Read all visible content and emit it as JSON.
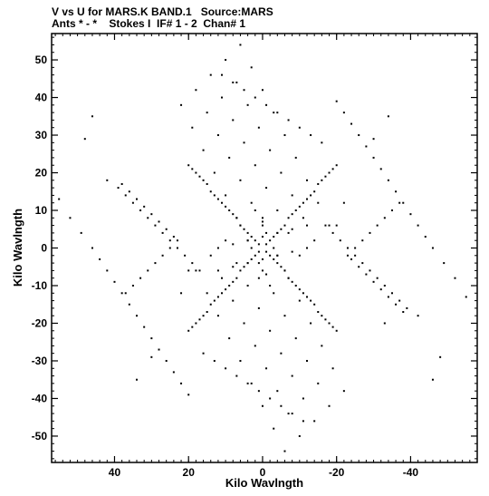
{
  "header": {
    "line1": "V vs U for MARS.K BAND.1   Source:MARS",
    "line2": "Ants * - *    Stokes I  IF# 1 - 2  Chan# 1"
  },
  "chart_data": {
    "type": "scatter",
    "xlabel": "Kilo Wavlngth",
    "ylabel": "Kilo Wavlngth",
    "xlim": [
      57,
      -58
    ],
    "ylim": [
      -57,
      57
    ],
    "xticks": [
      40,
      20,
      0,
      -20,
      -40
    ],
    "yticks": [
      50,
      40,
      30,
      20,
      10,
      0,
      -10,
      -20,
      -30,
      -40,
      -50
    ],
    "x_reversed": true,
    "point_color": "#000000",
    "x": [
      55,
      52,
      49,
      46,
      44,
      42,
      40,
      38,
      36,
      34,
      32,
      30,
      28,
      26,
      24,
      22,
      20,
      -55,
      -52,
      -49,
      -46,
      -44,
      -42,
      -40,
      -38,
      -36,
      -34,
      -32,
      -30,
      -28,
      -26,
      -24,
      -22,
      -20,
      -42,
      -39,
      -37,
      -35,
      -33,
      -31,
      -29,
      -27,
      -25,
      -23,
      -21,
      -19,
      -17,
      42,
      39,
      37,
      35,
      33,
      31,
      29,
      27,
      25,
      23,
      21,
      19,
      17,
      38,
      36,
      34,
      32,
      30,
      28,
      26,
      24,
      -38,
      -36,
      -34,
      -32,
      -30,
      -28,
      -26,
      -24,
      -37,
      -35,
      -33,
      -31,
      -29,
      -27,
      -25,
      -23,
      37,
      35,
      33,
      31,
      29,
      27,
      25,
      23,
      -34,
      -30,
      -22,
      -20,
      -46,
      -48,
      -33,
      34,
      30,
      22,
      20,
      46,
      48,
      20,
      19,
      18,
      17,
      16,
      15,
      14,
      13,
      12,
      11,
      10,
      9,
      8,
      7,
      6,
      5,
      4,
      3,
      2,
      1,
      -1,
      -2,
      -3,
      -4,
      -5,
      -6,
      -7,
      -8,
      -9,
      -10,
      -11,
      -12,
      -13,
      -14,
      -15,
      -16,
      -17,
      -18,
      -19,
      -20,
      20,
      19,
      18,
      17,
      16,
      15,
      14,
      13,
      12,
      11,
      10,
      9,
      8,
      7,
      6,
      5,
      4,
      3,
      2,
      1,
      -1,
      -2,
      -3,
      -4,
      -5,
      -6,
      -7,
      -8,
      -9,
      -10,
      -11,
      -12,
      -13,
      -14,
      -15,
      -16,
      -17,
      -18,
      -19,
      -20,
      6,
      3,
      0,
      -3,
      -6,
      -9,
      -12,
      -15,
      -18,
      10,
      7,
      4,
      1,
      -2,
      -5,
      -8,
      -11,
      -14,
      14,
      11,
      8,
      5,
      2,
      -1,
      -4,
      -7,
      -10,
      18,
      15,
      12,
      9,
      6,
      3,
      0,
      -3,
      -6,
      22,
      19,
      16,
      13,
      10,
      7,
      4,
      1,
      -2,
      -6,
      -3,
      0,
      3,
      6,
      9,
      12,
      15,
      18,
      -10,
      -7,
      -4,
      -1,
      2,
      5,
      8,
      11,
      14,
      -14,
      -11,
      -8,
      -5,
      -2,
      1,
      4,
      7,
      10,
      -18,
      -15,
      -12,
      -9,
      -6,
      -3,
      0,
      3,
      6,
      -22,
      -19,
      -16,
      -13,
      -10,
      -7,
      -4,
      -1,
      2,
      16,
      13,
      10,
      7,
      4,
      1,
      -2,
      -5,
      -8,
      -11,
      -16,
      -13,
      -10,
      -7,
      -4,
      -1,
      2,
      5,
      8,
      11,
      12,
      8,
      4,
      0,
      -4,
      -8,
      -12,
      -12,
      -8,
      -4,
      0,
      4,
      8,
      12,
      0,
      1,
      -1,
      0
    ],
    "y": [
      13,
      8,
      4,
      0,
      -3,
      -6,
      -9,
      -12,
      -15,
      -18,
      -21,
      -24,
      -27,
      -30,
      -33,
      -36,
      -39,
      -13,
      -8,
      -4,
      0,
      3,
      6,
      9,
      12,
      15,
      18,
      21,
      24,
      27,
      30,
      33,
      36,
      39,
      -18,
      -16,
      -14,
      -12,
      -10,
      -8,
      -6,
      -4,
      -2,
      0,
      2,
      4,
      6,
      18,
      16,
      14,
      12,
      10,
      8,
      6,
      4,
      2,
      0,
      -2,
      -4,
      -6,
      17,
      15,
      13,
      11,
      9,
      7,
      5,
      3,
      -17,
      -15,
      -13,
      -11,
      -9,
      -7,
      -5,
      -3,
      12,
      10,
      8,
      6,
      4,
      2,
      0,
      -2,
      -12,
      -10,
      -8,
      -6,
      -4,
      -2,
      0,
      2,
      35,
      29,
      12,
      6,
      -35,
      -29,
      -20,
      -35,
      -29,
      -12,
      -6,
      35,
      29,
      22,
      21,
      20,
      19,
      18,
      17,
      15,
      14,
      13,
      12,
      11,
      10,
      9,
      8,
      6,
      5,
      4,
      3,
      2,
      1,
      -1,
      -2,
      -3,
      -4,
      -5,
      -6,
      -8,
      -9,
      -10,
      -11,
      -12,
      -13,
      -14,
      -15,
      -17,
      -18,
      -19,
      -20,
      -21,
      -22,
      -22,
      -21,
      -20,
      -19,
      -18,
      -17,
      -15,
      -14,
      -13,
      -12,
      -11,
      -10,
      -9,
      -8,
      -6,
      -5,
      -4,
      -3,
      -2,
      -1,
      1,
      2,
      3,
      4,
      5,
      6,
      8,
      9,
      10,
      11,
      12,
      13,
      14,
      15,
      17,
      18,
      19,
      20,
      21,
      22,
      54,
      48,
      42,
      36,
      30,
      24,
      18,
      12,
      6,
      50,
      44,
      38,
      32,
      26,
      20,
      14,
      8,
      2,
      46,
      40,
      34,
      28,
      22,
      16,
      10,
      4,
      -2,
      42,
      36,
      30,
      24,
      18,
      12,
      6,
      0,
      -6,
      38,
      32,
      26,
      20,
      14,
      8,
      2,
      -4,
      -10,
      -54,
      -48,
      -42,
      -36,
      -30,
      -24,
      -18,
      -12,
      -6,
      -50,
      -44,
      -38,
      -32,
      -26,
      -20,
      -14,
      -8,
      -2,
      -46,
      -40,
      -34,
      -28,
      -22,
      -16,
      -10,
      -4,
      2,
      -42,
      -36,
      -30,
      -24,
      -18,
      -12,
      -6,
      0,
      6,
      -38,
      -32,
      -26,
      -20,
      -14,
      -8,
      -2,
      4,
      10,
      -28,
      -30,
      -32,
      -34,
      -36,
      -38,
      -40,
      -42,
      -44,
      -46,
      28,
      30,
      32,
      34,
      36,
      38,
      40,
      42,
      44,
      46,
      0,
      1,
      2,
      3,
      4,
      5,
      6,
      0,
      -1,
      -2,
      -3,
      -4,
      -5,
      -6,
      8,
      -8,
      -7,
      7
    ]
  }
}
